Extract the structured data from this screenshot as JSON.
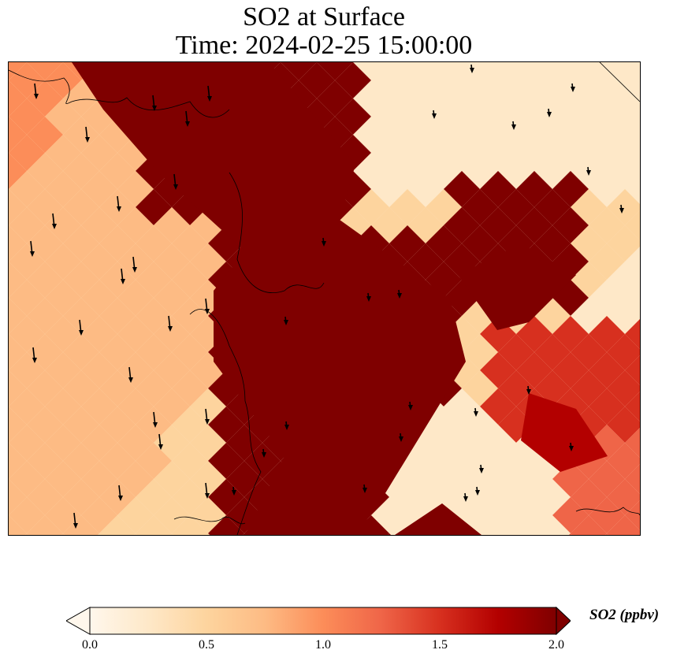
{
  "title": {
    "line1": "SO2 at Surface",
    "line2": "Time: 2024-02-25 15:00:00"
  },
  "colorbar": {
    "label": "SO2 (ppbv)",
    "ticks": [
      "0.0",
      "0.5",
      "1.0",
      "1.5",
      "2.0"
    ],
    "min": 0.0,
    "max": 2.0,
    "extend": "both",
    "colormap": "OrRd",
    "colors": [
      "#fff7ec",
      "#fee8c8",
      "#fdd49e",
      "#fdbb84",
      "#fc8d59",
      "#ef6548",
      "#d7301f",
      "#b30000",
      "#7f0000"
    ]
  },
  "map": {
    "variable": "SO2 concentration at surface",
    "overlay": "wind vectors",
    "coastlines": true
  }
}
